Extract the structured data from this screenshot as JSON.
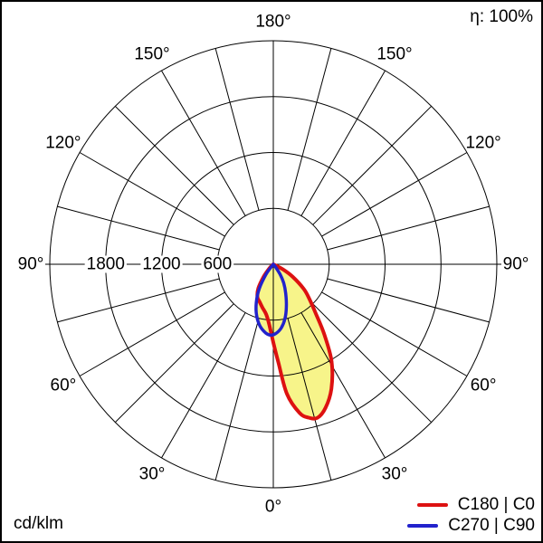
{
  "header": {
    "efficiency_label": "η: 100%"
  },
  "footer": {
    "unit_label": "cd/klm"
  },
  "legend": {
    "items": [
      {
        "label": "C180 | C0",
        "color": "#dd1111"
      },
      {
        "label": "C270 | C90",
        "color": "#2222cc"
      }
    ]
  },
  "colors": {
    "grid": "#000000",
    "background": "#ffffff",
    "lobe_fill": "#f7f48a",
    "curve_c0": "#dd1111",
    "curve_c90": "#2222cc"
  },
  "chart_data": {
    "type": "polar",
    "subtype": "luminous-intensity-distribution",
    "unit": "cd/klm",
    "efficiency": "100%",
    "annotations": [
      "η: 100%",
      "cd/klm"
    ],
    "angle_labels": [
      "0°",
      "30°",
      "60°",
      "90°",
      "120°",
      "150°",
      "180°"
    ],
    "angle_label_step_deg": 30,
    "angle_grid_step_deg": 15,
    "radial_ticks": [
      600,
      1200,
      1800,
      2400
    ],
    "radial_tick_labels": [
      "600",
      "1200",
      "1800"
    ],
    "rmax": 2400,
    "grid": true,
    "legend_position": "bottom-right",
    "series": [
      {
        "name": "C180 | C0",
        "color": "#dd1111",
        "fill": "#f7f48a",
        "points_gamma_deg_value": [
          [
            -50,
            0
          ],
          [
            -44,
            60
          ],
          [
            -38,
            165
          ],
          [
            -32,
            305
          ],
          [
            -26,
            390
          ],
          [
            -20,
            430
          ],
          [
            -14,
            480
          ],
          [
            -8,
            545
          ],
          [
            -4,
            645
          ],
          [
            0,
            840
          ],
          [
            3,
            1060
          ],
          [
            6,
            1400
          ],
          [
            10,
            1620
          ],
          [
            13,
            1690
          ],
          [
            16,
            1715
          ],
          [
            20,
            1640
          ],
          [
            25,
            1475
          ],
          [
            31,
            1215
          ],
          [
            36,
            930
          ],
          [
            41,
            690
          ],
          [
            46,
            540
          ],
          [
            51,
            420
          ],
          [
            57,
            250
          ],
          [
            62,
            120
          ],
          [
            68,
            0
          ]
        ]
      },
      {
        "name": "C270 | C90",
        "color": "#2222cc",
        "fill": "#f7f48a",
        "points_gamma_deg_value": [
          [
            -42,
            0
          ],
          [
            -36,
            130
          ],
          [
            -30,
            300
          ],
          [
            -24,
            450
          ],
          [
            -18,
            580
          ],
          [
            -12,
            680
          ],
          [
            -6,
            745
          ],
          [
            -2,
            762
          ],
          [
            2,
            745
          ],
          [
            7,
            690
          ],
          [
            12,
            600
          ],
          [
            17,
            480
          ],
          [
            23,
            340
          ],
          [
            29,
            230
          ],
          [
            34,
            130
          ],
          [
            39,
            40
          ],
          [
            43,
            0
          ]
        ]
      }
    ]
  }
}
